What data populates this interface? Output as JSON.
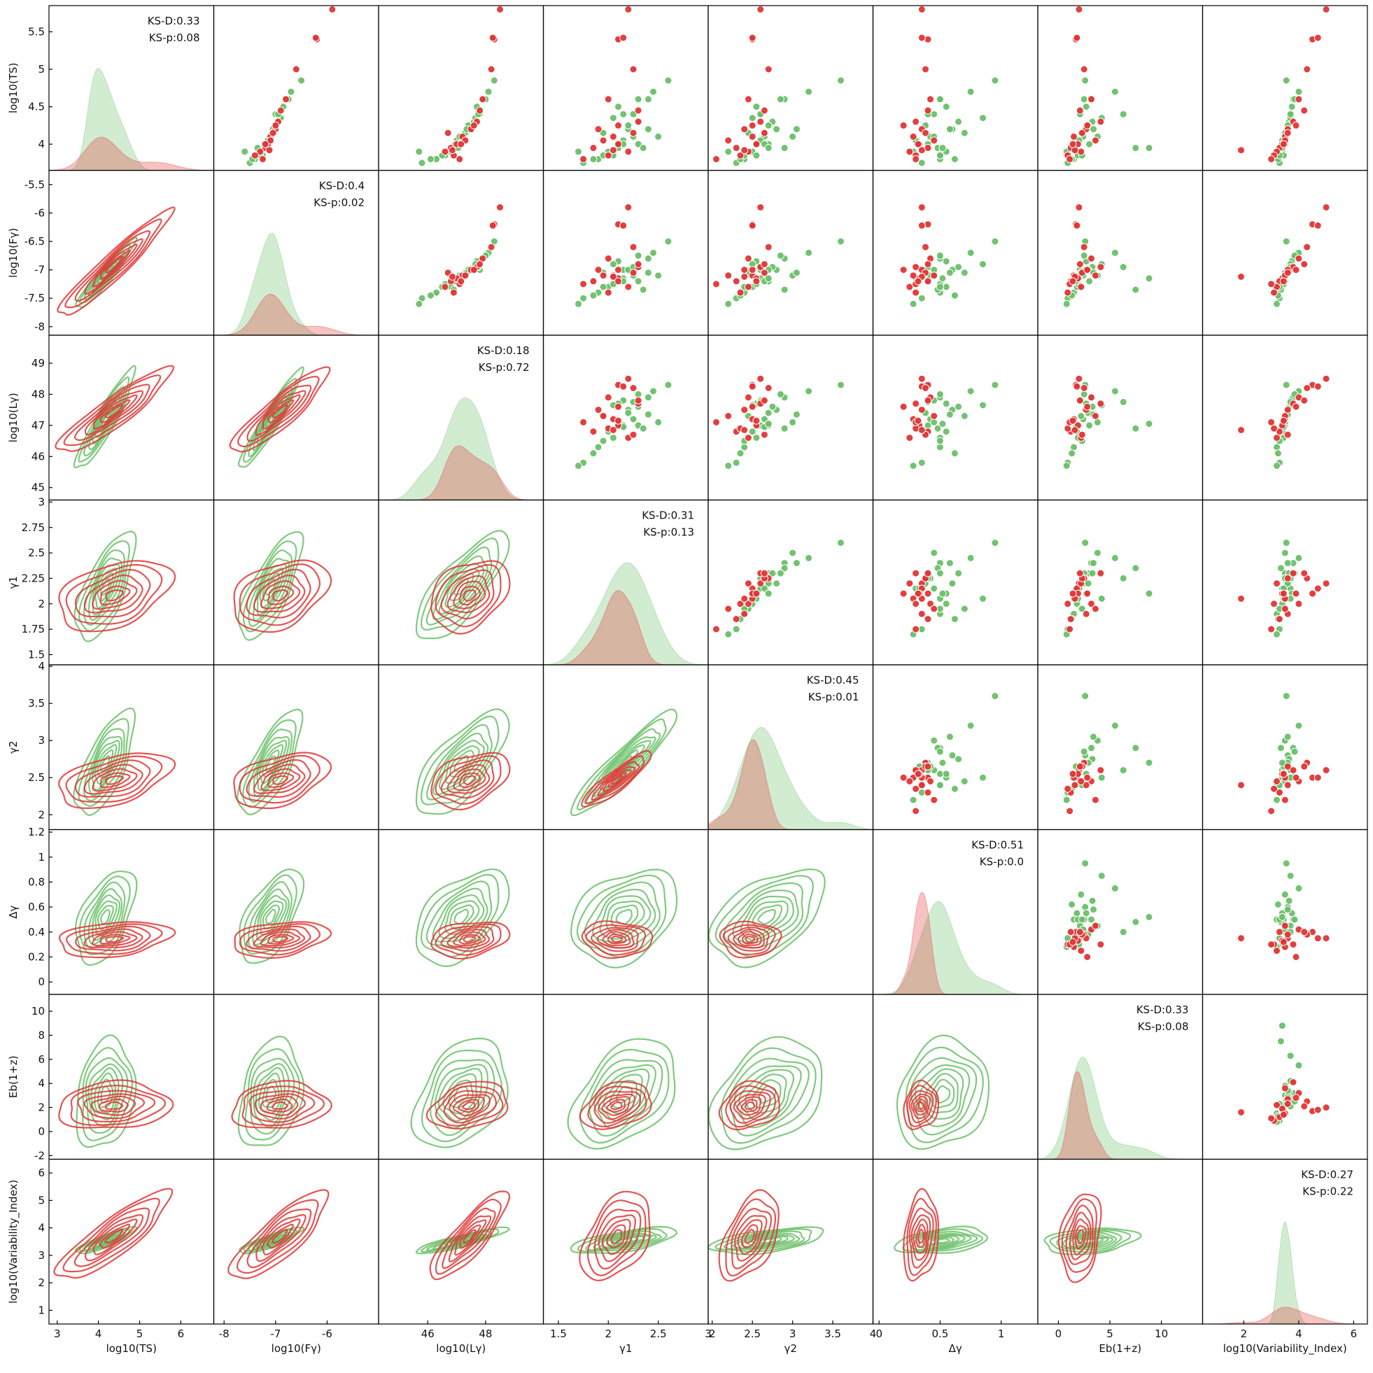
{
  "chart_data": {
    "type": "pair-grid",
    "variables": [
      {
        "key": "log10(TS)",
        "label": "log10(TS)",
        "ylabel": "log10(TS)",
        "range": [
          3.65,
          5.85
        ],
        "ticks": [
          4.0,
          4.5,
          5.0,
          5.5
        ],
        "xrange": [
          2.8,
          6.8
        ],
        "xticks": [
          3,
          4,
          5,
          6
        ]
      },
      {
        "key": "log10(F_γ)",
        "label": "log10(Fγ)",
        "ylabel": "log10(Fγ)",
        "range": [
          -8.15,
          -5.25
        ],
        "ticks": [
          -8.0,
          -7.5,
          -7.0,
          -6.5,
          -6.0,
          -5.5
        ],
        "xrange": [
          -8.2,
          -5.0
        ],
        "xticks": [
          -8,
          -7,
          -6
        ]
      },
      {
        "key": "log10(L_γ)",
        "label": "log10(Lγ)",
        "ylabel": "log10(Lγ)",
        "range": [
          44.6,
          49.9
        ],
        "ticks": [
          45,
          46,
          47,
          48,
          49
        ],
        "xrange": [
          44.3,
          50.0
        ],
        "xticks": [
          46,
          48
        ]
      },
      {
        "key": "γ1",
        "label": "γ1",
        "ylabel": "γ1",
        "range": [
          1.4,
          3.02
        ],
        "ticks": [
          1.5,
          1.75,
          2.0,
          2.25,
          2.5,
          2.75,
          3.0
        ],
        "xrange": [
          1.35,
          3.0
        ],
        "xticks": [
          1.5,
          2.0,
          2.5,
          3.0
        ]
      },
      {
        "key": "γ2",
        "label": "γ2",
        "ylabel": "γ2",
        "range": [
          1.8,
          4.02
        ],
        "ticks": [
          2.0,
          2.5,
          3.0,
          3.5,
          4.0
        ],
        "xrange": [
          1.95,
          4.0
        ],
        "xticks": [
          2.0,
          2.5,
          3.0,
          3.5,
          4.0
        ]
      },
      {
        "key": "Δγ",
        "label": "Δγ",
        "ylabel": "Δγ",
        "range": [
          -0.1,
          1.22
        ],
        "ticks": [
          0.0,
          0.2,
          0.4,
          0.6,
          0.8,
          1.0,
          1.2
        ],
        "xrange": [
          -0.05,
          1.3
        ],
        "xticks": [
          0.0,
          0.5,
          1.0
        ]
      },
      {
        "key": "E_b(1+z)",
        "label": "Eb(1+z)",
        "ylabel": "Eb(1+z)",
        "range": [
          -2.3,
          11.4
        ],
        "ticks": [
          -2,
          0,
          2,
          4,
          6,
          8,
          10
        ],
        "xrange": [
          -2.0,
          14.0
        ],
        "xticks": [
          0,
          5,
          10
        ]
      },
      {
        "key": "log10(Variability_Index)",
        "label": "log10(Variability_Index)",
        "ylabel": "log10(Variability_Index)",
        "range": [
          0.5,
          6.5
        ],
        "ticks": [
          1,
          2,
          3,
          4,
          5,
          6
        ],
        "xrange": [
          0.5,
          6.5
        ],
        "xticks": [
          2,
          4,
          6
        ]
      }
    ],
    "series": [
      {
        "color": "#6abf69",
        "values": [
          [
            4.4,
            -7.0,
            47.8,
            2.15,
            2.6,
            0.45,
            2.1,
            3.7
          ],
          [
            4.0,
            -7.2,
            47.0,
            2.3,
            2.7,
            0.4,
            3.0,
            3.5
          ],
          [
            3.8,
            -7.4,
            46.3,
            1.9,
            2.4,
            0.5,
            1.5,
            3.2
          ],
          [
            4.7,
            -6.7,
            48.1,
            2.45,
            3.2,
            0.75,
            5.5,
            4.0
          ],
          [
            4.2,
            -7.0,
            47.5,
            2.2,
            2.8,
            0.6,
            2.6,
            3.6
          ],
          [
            3.9,
            -7.3,
            46.8,
            2.0,
            2.5,
            0.55,
            1.8,
            3.4
          ],
          [
            4.6,
            -6.8,
            47.9,
            2.4,
            2.9,
            0.5,
            3.2,
            3.8
          ],
          [
            3.75,
            -7.5,
            45.8,
            1.75,
            2.3,
            0.35,
            0.9,
            3.3
          ],
          [
            4.1,
            -7.1,
            47.2,
            2.25,
            2.65,
            0.42,
            2.4,
            3.5
          ],
          [
            4.85,
            -6.5,
            48.3,
            2.6,
            3.6,
            0.95,
            2.6,
            3.55
          ],
          [
            3.85,
            -7.25,
            46.6,
            2.05,
            2.55,
            0.5,
            1.9,
            3.45
          ],
          [
            4.3,
            -6.95,
            47.6,
            2.3,
            2.75,
            0.65,
            3.3,
            3.65
          ],
          [
            4.05,
            -7.15,
            47.0,
            2.15,
            2.6,
            0.3,
            2.0,
            3.4
          ],
          [
            4.15,
            -7.05,
            47.3,
            1.95,
            2.45,
            0.7,
            2.2,
            3.5
          ],
          [
            3.95,
            -7.35,
            46.9,
            2.35,
            2.9,
            0.48,
            7.5,
            3.35
          ],
          [
            4.5,
            -6.85,
            47.7,
            2.1,
            2.55,
            0.55,
            2.7,
            3.75
          ],
          [
            4.25,
            -7.0,
            47.4,
            2.2,
            2.7,
            0.38,
            2.9,
            3.6
          ],
          [
            3.8,
            -7.45,
            46.1,
            1.85,
            2.35,
            0.62,
            1.3,
            3.25
          ],
          [
            4.35,
            -6.9,
            47.65,
            2.05,
            2.5,
            0.85,
            4.2,
            3.7
          ],
          [
            4.1,
            -7.1,
            47.1,
            2.5,
            3.0,
            0.45,
            3.8,
            3.5
          ],
          [
            3.9,
            -7.6,
            45.7,
            1.7,
            2.2,
            0.28,
            0.8,
            3.2
          ],
          [
            4.6,
            -6.75,
            48.0,
            2.3,
            2.85,
            0.5,
            2.5,
            3.85
          ],
          [
            4.0,
            -7.2,
            46.95,
            2.15,
            2.65,
            0.33,
            1.7,
            3.45
          ],
          [
            4.2,
            -7.05,
            47.35,
            2.4,
            3.05,
            0.58,
            3.4,
            3.6
          ],
          [
            3.85,
            -7.3,
            46.5,
            1.95,
            2.4,
            0.5,
            2.3,
            3.3
          ],
          [
            4.4,
            -6.95,
            47.75,
            2.25,
            2.6,
            0.4,
            6.3,
            3.7
          ],
          [
            3.95,
            -7.15,
            47.05,
            2.1,
            2.7,
            0.52,
            8.8,
            3.4
          ]
        ]
      },
      {
        "color": "#e03535",
        "values": [
          [
            5.8,
            -5.9,
            48.5,
            2.2,
            2.6,
            0.35,
            2.0,
            5.0
          ],
          [
            5.4,
            -6.2,
            48.3,
            2.1,
            2.5,
            0.4,
            1.7,
            4.5
          ],
          [
            5.42,
            -6.22,
            48.25,
            2.15,
            2.5,
            0.35,
            1.8,
            4.7
          ],
          [
            5.0,
            -6.6,
            48.2,
            2.25,
            2.7,
            0.38,
            2.5,
            4.3
          ],
          [
            4.6,
            -6.8,
            47.9,
            2.0,
            2.45,
            0.42,
            3.2,
            4.0
          ],
          [
            4.3,
            -6.95,
            47.7,
            2.3,
            2.6,
            0.3,
            4.1,
            3.8
          ],
          [
            4.2,
            -7.0,
            47.5,
            1.9,
            2.4,
            0.35,
            2.7,
            3.6
          ],
          [
            4.1,
            -7.1,
            47.2,
            2.05,
            2.5,
            0.28,
            1.5,
            3.5
          ],
          [
            4.0,
            -7.15,
            47.0,
            2.1,
            2.55,
            0.33,
            1.9,
            3.4
          ],
          [
            3.95,
            -7.2,
            46.8,
            1.85,
            2.3,
            0.4,
            1.2,
            3.3
          ],
          [
            3.9,
            -7.3,
            46.6,
            2.2,
            2.45,
            0.25,
            2.2,
            3.2
          ],
          [
            3.85,
            -7.4,
            46.9,
            2.0,
            2.35,
            0.3,
            0.9,
            3.1
          ],
          [
            4.05,
            -7.1,
            47.3,
            1.95,
            2.2,
            0.45,
            3.6,
            3.5
          ],
          [
            4.15,
            -7.05,
            46.7,
            2.25,
            2.65,
            0.38,
            2.3,
            3.6
          ],
          [
            3.8,
            -7.25,
            47.1,
            1.75,
            2.05,
            0.3,
            1.1,
            3.0
          ],
          [
            4.25,
            -7.0,
            47.6,
            2.1,
            2.5,
            0.2,
            2.8,
            3.9
          ],
          [
            3.92,
            -7.12,
            46.85,
            2.05,
            2.4,
            0.35,
            1.6,
            1.9
          ],
          [
            4.45,
            -6.9,
            47.8,
            2.3,
            2.65,
            0.4,
            2.1,
            4.2
          ],
          [
            4.0,
            -7.2,
            47.15,
            2.1,
            2.55,
            0.32,
            1.4,
            3.45
          ]
        ]
      }
    ],
    "ks": [
      {
        "d": "KS-D:0.33",
        "p": "KS-p:0.08"
      },
      {
        "d": "KS-D:0.4",
        "p": "KS-p:0.02"
      },
      {
        "d": "KS-D:0.18",
        "p": "KS-p:0.72"
      },
      {
        "d": "KS-D:0.31",
        "p": "KS-p:0.13"
      },
      {
        "d": "KS-D:0.45",
        "p": "KS-p:0.01"
      },
      {
        "d": "KS-D:0.51",
        "p": "KS-p:0.0"
      },
      {
        "d": "KS-D:0.33",
        "p": "KS-p:0.08"
      },
      {
        "d": "KS-D:0.27",
        "p": "KS-p:0.22"
      }
    ],
    "upper": "scatter",
    "lower": "kde-contour",
    "diagonal": "kde-fill"
  }
}
